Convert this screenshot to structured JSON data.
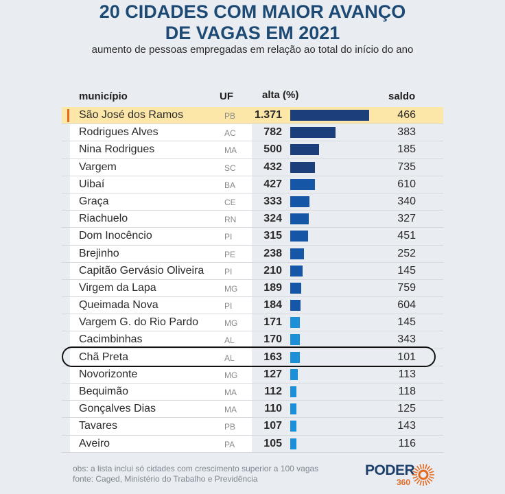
{
  "title_line1": "20 CIDADES COM MAIOR AVANÇO",
  "title_line2": "DE VAGAS EM 2021",
  "subtitle": "aumento de pessoas empregadas em relação ao total do início do ano",
  "columns": {
    "municipio": "município",
    "uf": "UF",
    "alta": "alta (%)",
    "saldo": "saldo"
  },
  "rows": [
    {
      "municipio": "São José dos Ramos",
      "uf": "PB",
      "alta": "1.371",
      "saldo": "466"
    },
    {
      "municipio": "Rodrigues Alves",
      "uf": "AC",
      "alta": "782",
      "saldo": "383"
    },
    {
      "municipio": "Nina Rodrigues",
      "uf": "MA",
      "alta": "500",
      "saldo": "185"
    },
    {
      "municipio": "Vargem",
      "uf": "SC",
      "alta": "432",
      "saldo": "735"
    },
    {
      "municipio": "Uibaí",
      "uf": "BA",
      "alta": "427",
      "saldo": "610"
    },
    {
      "municipio": "Graça",
      "uf": "CE",
      "alta": "333",
      "saldo": "340"
    },
    {
      "municipio": "Riachuelo",
      "uf": "RN",
      "alta": "324",
      "saldo": "327"
    },
    {
      "municipio": "Dom Inocêncio",
      "uf": "PI",
      "alta": "315",
      "saldo": "451"
    },
    {
      "municipio": "Brejinho",
      "uf": "PE",
      "alta": "238",
      "saldo": "252"
    },
    {
      "municipio": "Capitão Gervásio Oliveira",
      "uf": "PI",
      "alta": "210",
      "saldo": "145"
    },
    {
      "municipio": "Virgem da Lapa",
      "uf": "MG",
      "alta": "189",
      "saldo": "759"
    },
    {
      "municipio": "Queimada Nova",
      "uf": "PI",
      "alta": "184",
      "saldo": "604"
    },
    {
      "municipio": "Vargem G. do Rio Pardo",
      "uf": "MG",
      "alta": "171",
      "saldo": "145"
    },
    {
      "municipio": "Cacimbinhas",
      "uf": "AL",
      "alta": "170",
      "saldo": "343"
    },
    {
      "municipio": "Chã Preta",
      "uf": "AL",
      "alta": "163",
      "saldo": "101"
    },
    {
      "municipio": "Novorizonte",
      "uf": "MG",
      "alta": "127",
      "saldo": "113"
    },
    {
      "municipio": "Bequimão",
      "uf": "MA",
      "alta": "112",
      "saldo": "118"
    },
    {
      "municipio": "Gonçalves Dias",
      "uf": "MA",
      "alta": "110",
      "saldo": "125"
    },
    {
      "municipio": "Tavares",
      "uf": "PB",
      "alta": "107",
      "saldo": "143"
    },
    {
      "municipio": "Aveiro",
      "uf": "PA",
      "alta": "105",
      "saldo": "116"
    }
  ],
  "highlighted_row": "São José dos Ramos",
  "circled_row": "Chã Preta",
  "note_obs": "obs: a lista inclui só cidades com crescimento superior a 100 vagas",
  "note_fonte": "fonte: Caged, Ministério do Trabalho e Previdência",
  "logo": {
    "name": "PODER",
    "number": "360"
  },
  "colors": {
    "dark_bar": "#1b3f7a",
    "mid_bar": "#1656a6",
    "light_bar": "#1c8fd9",
    "highlight": "#fde7a8",
    "accent": "#e36a1f",
    "title": "#1d4a74"
  },
  "chart_data": {
    "type": "bar",
    "orientation": "horizontal",
    "title": "20 CIDADES COM MAIOR AVANÇO DE VAGAS EM 2021",
    "subtitle": "aumento de pessoas empregadas em relação ao total do início do ano",
    "categories": [
      "São José dos Ramos",
      "Rodrigues Alves",
      "Nina Rodrigues",
      "Vargem",
      "Uibaí",
      "Graça",
      "Riachuelo",
      "Dom Inocêncio",
      "Brejinho",
      "Capitão Gervásio Oliveira",
      "Virgem da Lapa",
      "Queimada Nova",
      "Vargem G. do Rio Pardo",
      "Cacimbinhas",
      "Chã Preta",
      "Novorizonte",
      "Bequimão",
      "Gonçalves Dias",
      "Tavares",
      "Aveiro"
    ],
    "series": [
      {
        "name": "alta (%)",
        "values": [
          1371,
          782,
          500,
          432,
          427,
          333,
          324,
          315,
          238,
          210,
          189,
          184,
          171,
          170,
          163,
          127,
          112,
          110,
          107,
          105
        ]
      },
      {
        "name": "saldo",
        "values": [
          466,
          383,
          185,
          735,
          610,
          340,
          327,
          451,
          252,
          145,
          759,
          604,
          145,
          343,
          101,
          113,
          118,
          125,
          143,
          116
        ]
      }
    ],
    "xlabel": "alta (%)",
    "ylabel": "município",
    "xlim": [
      0,
      1371
    ],
    "grid": false
  }
}
